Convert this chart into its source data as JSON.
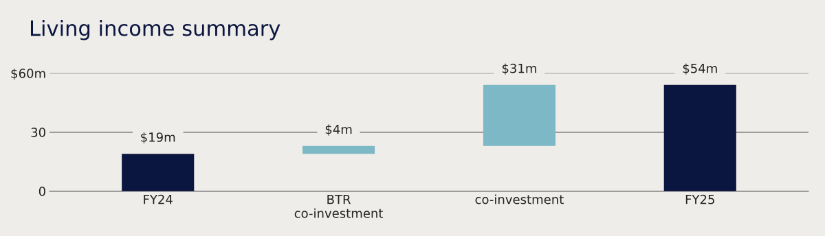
{
  "chart_data": {
    "type": "bar",
    "title": "Living income summary",
    "categories": [
      "FY24",
      "BTR\nco-investment",
      "co-investment",
      "FY25"
    ],
    "values": [
      19,
      4,
      31,
      54
    ],
    "base": [
      0,
      19,
      23,
      0
    ],
    "colors": [
      "#0b1640",
      "#7db8c6",
      "#7db8c6",
      "#0b1640"
    ],
    "value_labels": [
      "$19m",
      "$4m",
      "$31m",
      "$54m"
    ],
    "ylim": [
      0,
      60
    ],
    "yticks": [
      0,
      30,
      {
        "value": 60,
        "label": "$60m"
      }
    ],
    "grid": "y"
  }
}
